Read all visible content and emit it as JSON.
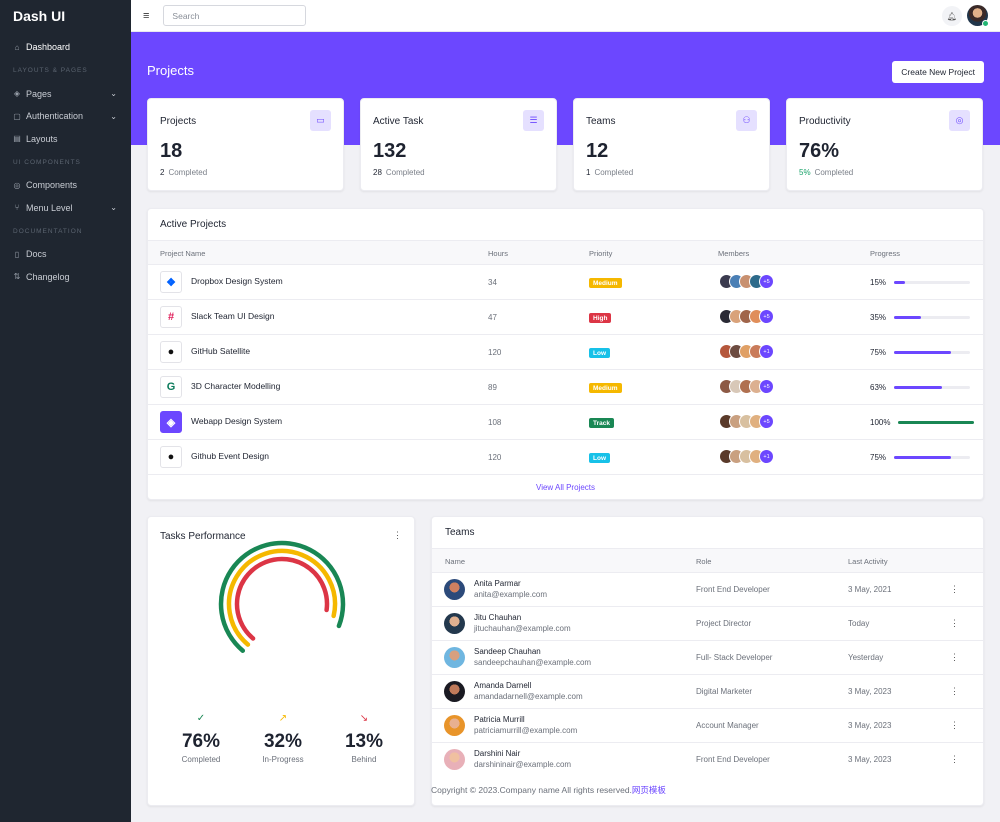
{
  "brand": "Dash UI",
  "nav": {
    "dashboard": "Dashboard",
    "section_layouts": "LAYOUTS & PAGES",
    "pages": "Pages",
    "authentication": "Authentication",
    "layouts": "Layouts",
    "section_components": "UI COMPONENTS",
    "components": "Components",
    "menu_level": "Menu Level",
    "section_docs": "DOCUMENTATION",
    "docs": "Docs",
    "changelog": "Changelog"
  },
  "topbar": {
    "search_placeholder": "Search"
  },
  "hero": {
    "title": "Projects",
    "create_label": "Create New Project"
  },
  "stats": [
    {
      "title": "Projects",
      "value": "18",
      "sub_num": "2",
      "sub_label": "Completed",
      "icon": "briefcase-icon"
    },
    {
      "title": "Active Task",
      "value": "132",
      "sub_num": "28",
      "sub_label": "Completed",
      "icon": "list-icon"
    },
    {
      "title": "Teams",
      "value": "12",
      "sub_num": "1",
      "sub_label": "Completed",
      "icon": "people-icon"
    },
    {
      "title": "Productivity",
      "value": "76%",
      "sub_num": "5%",
      "sub_label": "Completed",
      "icon": "target-icon"
    }
  ],
  "active_projects": {
    "title": "Active Projects",
    "columns": [
      "Project Name",
      "Hours",
      "Priority",
      "Members",
      "Progress"
    ],
    "rows": [
      {
        "name": "Dropbox Design System",
        "hours": "34",
        "priority": "Medium",
        "priority_color": "#f5b800",
        "more": "+5",
        "progress": "15%",
        "fraction": 0.15,
        "bar_color": "#6c47ff",
        "logo": "dropbox-icon"
      },
      {
        "name": "Slack Team UI Design",
        "hours": "47",
        "priority": "High",
        "priority_color": "#dc3545",
        "more": "+5",
        "progress": "35%",
        "fraction": 0.35,
        "bar_color": "#6c47ff",
        "logo": "slack-icon"
      },
      {
        "name": "GitHub Satellite",
        "hours": "120",
        "priority": "Low",
        "priority_color": "#17c1e8",
        "more": "+1",
        "progress": "75%",
        "fraction": 0.75,
        "bar_color": "#6c47ff",
        "logo": "github-icon"
      },
      {
        "name": "3D Character Modelling",
        "hours": "89",
        "priority": "Medium",
        "priority_color": "#f5b800",
        "more": "+5",
        "progress": "63%",
        "fraction": 0.63,
        "bar_color": "#6c47ff",
        "logo": "modelling-icon"
      },
      {
        "name": "Webapp Design System",
        "hours": "108",
        "priority": "Track",
        "priority_color": "#198754",
        "more": "+5",
        "progress": "100%",
        "fraction": 1.0,
        "bar_color": "#198754",
        "logo": "layers-icon"
      },
      {
        "name": "Github Event Design",
        "hours": "120",
        "priority": "Low",
        "priority_color": "#17c1e8",
        "more": "+1",
        "progress": "75%",
        "fraction": 0.75,
        "bar_color": "#6c47ff",
        "logo": "github-icon"
      }
    ],
    "view_all": "View All Projects"
  },
  "tasks": {
    "title": "Tasks Performance",
    "metrics": [
      {
        "value": "76%",
        "label": "Completed",
        "color": "#198754",
        "icon": "check-circle-icon"
      },
      {
        "value": "32%",
        "label": "In-Progress",
        "color": "#f5b800",
        "icon": "trend-up-icon"
      },
      {
        "value": "13%",
        "label": "Behind",
        "color": "#dc3545",
        "icon": "trend-down-icon"
      }
    ]
  },
  "teams": {
    "title": "Teams",
    "columns": [
      "Name",
      "Role",
      "Last Activity"
    ],
    "rows": [
      {
        "name": "Anita Parmar",
        "email": "anita@example.com",
        "role": "Front End Developer",
        "last": "3 May, 2021"
      },
      {
        "name": "Jitu Chauhan",
        "email": "jituchauhan@example.com",
        "role": "Project Director",
        "last": "Today"
      },
      {
        "name": "Sandeep Chauhan",
        "email": "sandeepchauhan@example.com",
        "role": "Full- Stack Developer",
        "last": "Yesterday"
      },
      {
        "name": "Amanda Darnell",
        "email": "amandadarnell@example.com",
        "role": "Digital Marketer",
        "last": "3 May, 2023"
      },
      {
        "name": "Patricia Murrill",
        "email": "patriciamurrill@example.com",
        "role": "Account Manager",
        "last": "3 May, 2023"
      },
      {
        "name": "Darshini Nair",
        "email": "darshininair@example.com",
        "role": "Front End Developer",
        "last": "3 May, 2023"
      }
    ]
  },
  "footer": {
    "text": "Copyright © 2023.Company name All rights reserved.",
    "link": "网页模板"
  }
}
